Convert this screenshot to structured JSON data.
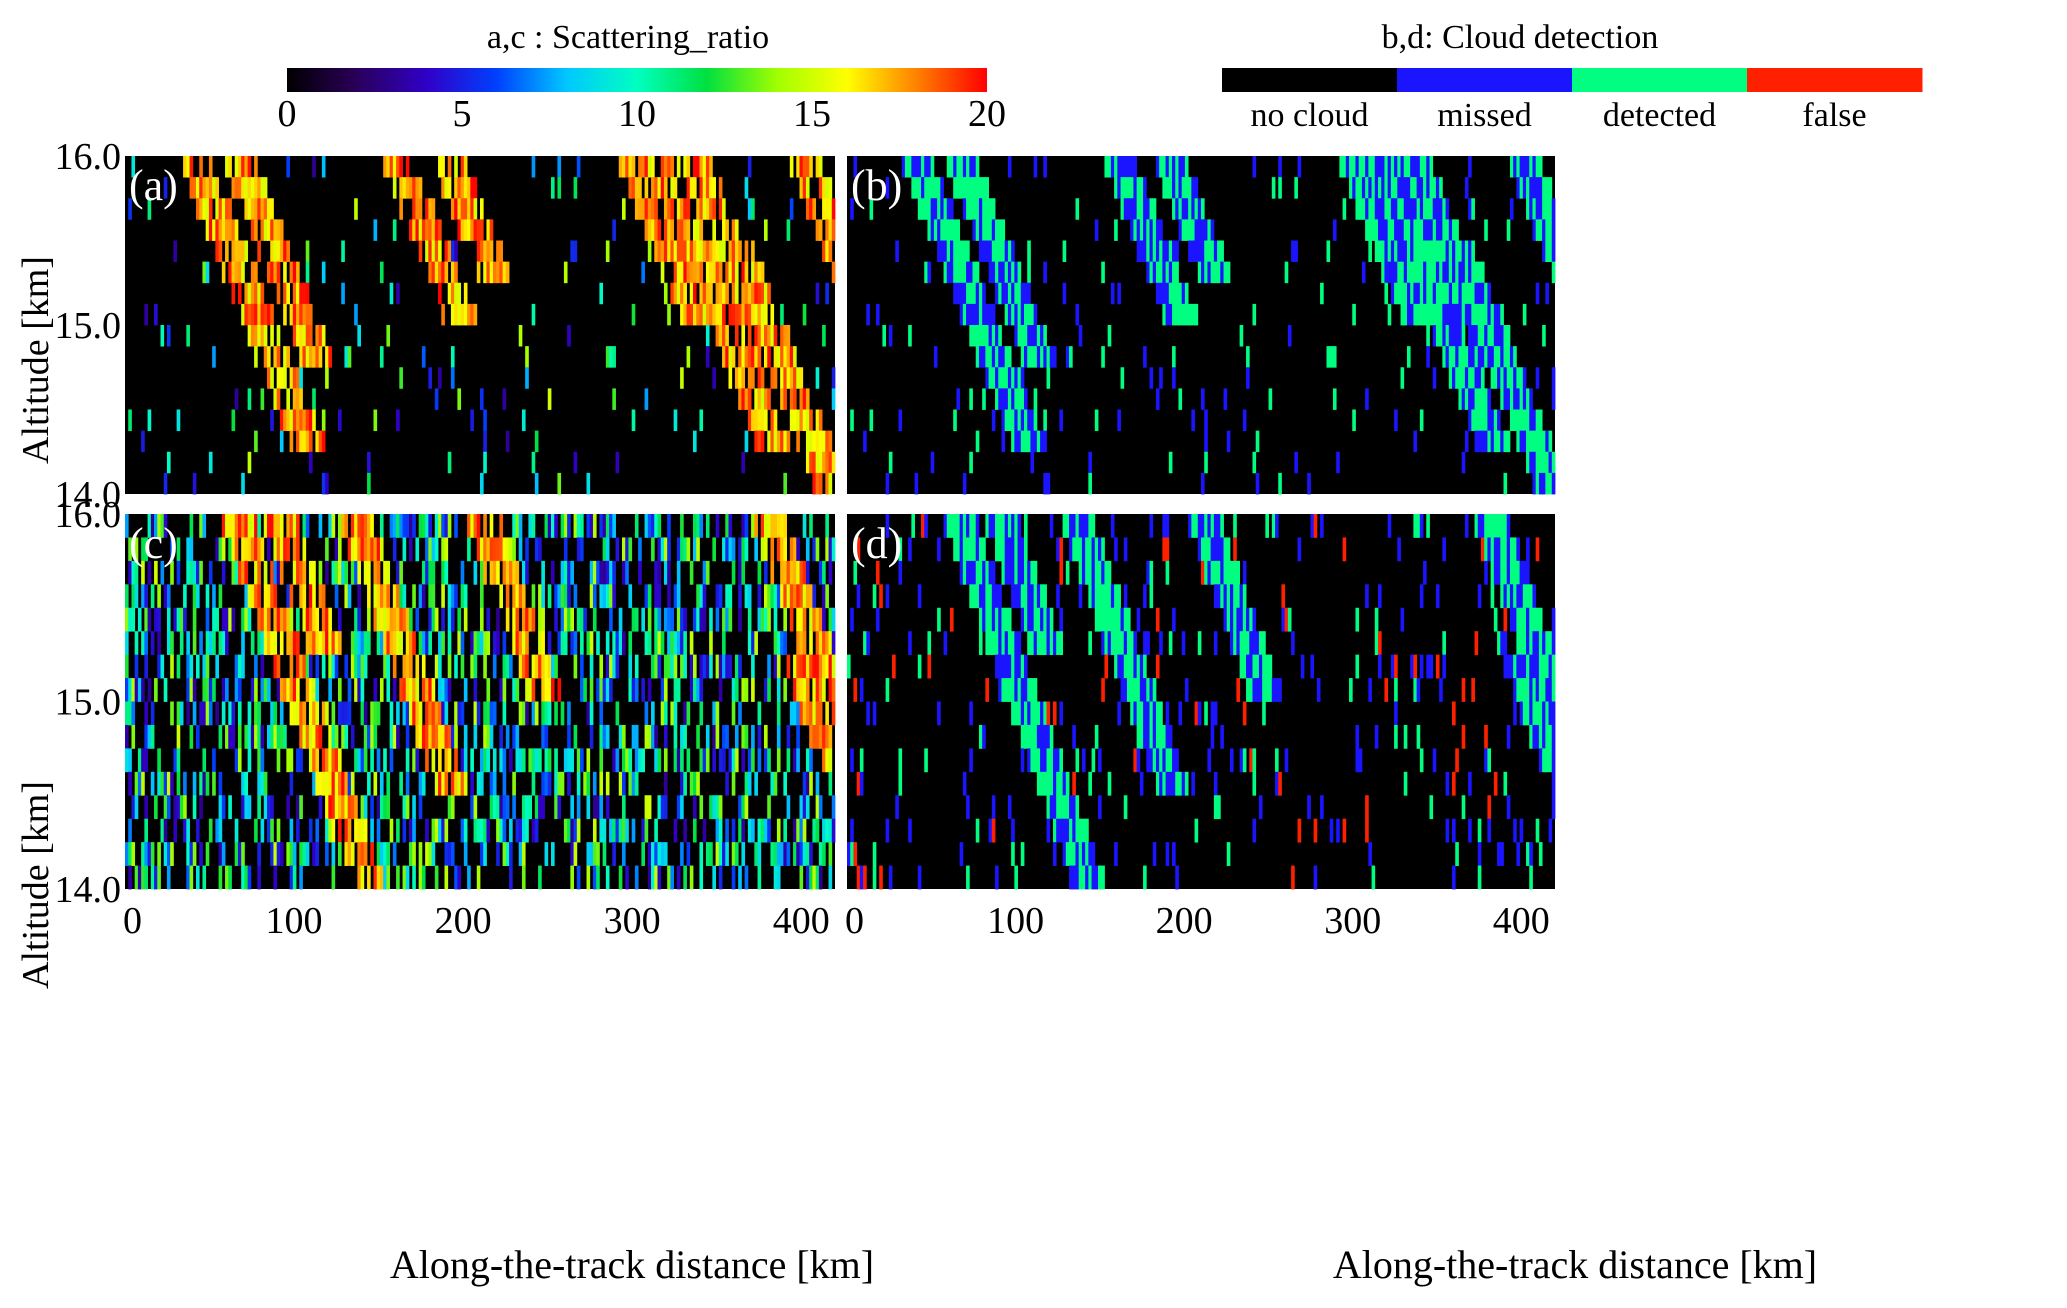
{
  "colorbars": {
    "scattering": {
      "title": "a,c : Scattering_ratio",
      "ticks": [
        "0",
        "5",
        "10",
        "15",
        "20"
      ],
      "range": [
        0,
        20
      ],
      "stops": [
        "#000000",
        "#2a005a",
        "#3000c8",
        "#0040ff",
        "#00c8ff",
        "#00ffc0",
        "#00e040",
        "#a0ff00",
        "#ffff00",
        "#ff8000",
        "#ff0000"
      ]
    },
    "detection": {
      "title": "b,d: Cloud detection",
      "classes": [
        {
          "label": "no cloud",
          "color": "#000000"
        },
        {
          "label": "missed",
          "color": "#1a14ff"
        },
        {
          "label": "detected",
          "color": "#00ff80"
        },
        {
          "label": "false",
          "color": "#ff2000"
        }
      ]
    }
  },
  "chart_data": [
    {
      "type": "heatmap",
      "panel": "(a)",
      "variable": "Scattering_ratio",
      "xlabel": "",
      "ylabel": "Altitude [km]",
      "xlim": [
        0,
        420
      ],
      "ylim": [
        14.0,
        16.0
      ],
      "y_ticks": [
        "14.0",
        "15.0",
        "16.0"
      ],
      "x_ticks": [],
      "cloud_bands": [
        [
          10,
          40,
          16.0,
          14.3
        ],
        [
          10,
          66,
          16.0,
          14.8
        ],
        [
          10,
          160,
          16.0,
          15.0
        ],
        [
          10,
          190,
          16.0,
          15.3
        ],
        [
          10,
          300,
          16.0,
          15.0
        ],
        [
          10,
          315,
          16.0,
          14.3
        ],
        [
          10,
          335,
          16.0,
          14.8
        ],
        [
          10,
          400,
          16.0,
          14.9
        ],
        [
          10,
          360,
          15.5,
          14.0
        ]
      ]
    },
    {
      "type": "heatmap",
      "panel": "(b)",
      "variable": "Cloud detection",
      "xlabel": "",
      "ylabel": "",
      "xlim": [
        0,
        420
      ],
      "ylim": [
        14.0,
        16.0
      ],
      "x_ticks": [],
      "cloud_bands": [
        [
          10,
          40,
          16.0,
          14.3
        ],
        [
          10,
          66,
          16.0,
          14.8
        ],
        [
          10,
          160,
          16.0,
          15.0
        ],
        [
          10,
          190,
          16.0,
          15.3
        ],
        [
          10,
          300,
          16.0,
          15.0
        ],
        [
          10,
          315,
          16.0,
          14.3
        ],
        [
          10,
          335,
          16.0,
          14.8
        ],
        [
          10,
          400,
          16.0,
          14.9
        ],
        [
          10,
          360,
          15.5,
          14.0
        ]
      ]
    },
    {
      "type": "heatmap",
      "panel": "(c)",
      "variable": "Scattering_ratio",
      "xlabel": "Along-the-track distance [km]",
      "ylabel": "Altitude [km]",
      "xlim": [
        0,
        420
      ],
      "ylim": [
        14.0,
        16.0
      ],
      "y_ticks": [
        "14.0",
        "15.0",
        "16.0"
      ],
      "x_ticks": [
        "0",
        "100",
        "200",
        "300",
        "400"
      ],
      "cloud_bands": [
        [
          10,
          65,
          16.0,
          14.0
        ],
        [
          10,
          90,
          16.0,
          15.2
        ],
        [
          10,
          135,
          16.0,
          14.5
        ],
        [
          10,
          210,
          16.0,
          15.0
        ],
        [
          10,
          380,
          16.0,
          14.9
        ],
        [
          10,
          395,
          15.3,
          14.6
        ],
        [
          10,
          410,
          15.0,
          14.4
        ]
      ]
    },
    {
      "type": "heatmap",
      "panel": "(d)",
      "variable": "Cloud detection",
      "xlabel": "Along-the-track distance [km]",
      "ylabel": "",
      "xlim": [
        0,
        420
      ],
      "ylim": [
        14.0,
        16.0
      ],
      "x_ticks": [
        "0",
        "100",
        "200",
        "300",
        "400"
      ],
      "cloud_bands": [
        [
          10,
          65,
          16.0,
          14.0
        ],
        [
          10,
          90,
          16.0,
          15.2
        ],
        [
          10,
          135,
          16.0,
          14.5
        ],
        [
          10,
          210,
          16.0,
          15.0
        ],
        [
          10,
          380,
          16.0,
          14.9
        ],
        [
          10,
          395,
          15.3,
          14.6
        ],
        [
          10,
          410,
          15.0,
          14.4
        ]
      ]
    }
  ]
}
